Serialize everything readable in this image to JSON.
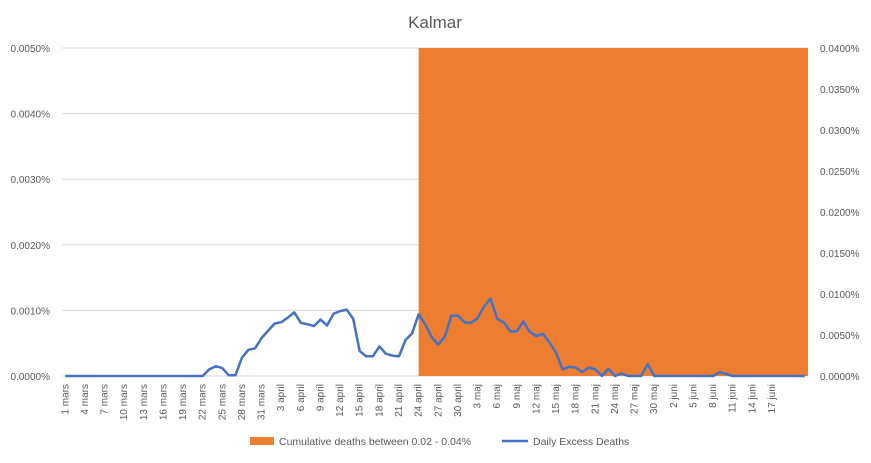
{
  "chart_data": {
    "type": "line",
    "title": "Kalmar",
    "colors": {
      "band": "#ED7D31",
      "line": "#4472C4"
    },
    "grid": true,
    "legend_position": "bottom",
    "y_left": {
      "ticks": [
        "0.0000%",
        "0.0010%",
        "0.0020%",
        "0.0030%",
        "0.0040%",
        "0.0050%"
      ],
      "ylim": [
        0,
        0.005
      ]
    },
    "y_right": {
      "ticks": [
        "0.0000%",
        "0.0050%",
        "0.0100%",
        "0.0150%",
        "0.0200%",
        "0.0250%",
        "0.0300%",
        "0.0350%",
        "0.0400%"
      ],
      "ylim": [
        0,
        0.04
      ]
    },
    "x_tick_labels": [
      "1 mars",
      "4 mars",
      "7 mars",
      "10 mars",
      "13 mars",
      "16 mars",
      "19 mars",
      "22 mars",
      "25 mars",
      "28 mars",
      "31 mars",
      "3 april",
      "6 april",
      "9 april",
      "12 april",
      "15 april",
      "18 april",
      "21 april",
      "24 april",
      "27 april",
      "30 april",
      "3 maj",
      "6 maj",
      "9 maj",
      "12 maj",
      "15 maj",
      "18 maj",
      "21 maj",
      "24 maj",
      "27 maj",
      "30 maj",
      "2 juni",
      "5 juni",
      "8 juni",
      "11 juni",
      "14 juni",
      "17 juni"
    ],
    "series": [
      {
        "name": "Cumulative deaths between 0.02 - 0.04%",
        "type": "area",
        "axis": "right",
        "x_start": "24 april",
        "x_end": "17 juni",
        "y_low": 0.02,
        "y_high": 0.04
      },
      {
        "name": "Daily Excess Deaths",
        "type": "line",
        "axis": "left",
        "values": [
          0,
          0,
          0,
          0,
          0,
          0,
          0,
          0,
          0,
          0,
          0,
          0,
          0,
          0,
          0,
          0,
          0,
          0,
          0,
          0,
          0,
          0,
          0.0001,
          0.00015,
          0.00012,
          1e-05,
          1e-05,
          0.00028,
          0.0004,
          0.00042,
          0.00058,
          0.00069,
          0.0008,
          0.00082,
          0.00089,
          0.00097,
          0.00081,
          0.00079,
          0.00076,
          0.00086,
          0.00077,
          0.00095,
          0.00099,
          0.00101,
          0.00087,
          0.00038,
          0.0003,
          0.0003,
          0.00045,
          0.00034,
          0.00031,
          0.0003,
          0.00055,
          0.00065,
          0.00094,
          0.00079,
          0.00059,
          0.00048,
          0.0006,
          0.00092,
          0.00092,
          0.00082,
          0.00081,
          0.00088,
          0.00106,
          0.00118,
          0.00087,
          0.00082,
          0.00068,
          0.00068,
          0.00083,
          0.00067,
          0.00061,
          0.00064,
          0.00051,
          0.00035,
          0.0001,
          0.00014,
          0.00013,
          6e-05,
          0.00013,
          0.0001,
          0,
          0.00011,
          0,
          4e-05,
          0,
          0,
          0,
          0.00018,
          0,
          0,
          0,
          0,
          0,
          0,
          0,
          0,
          0,
          0,
          6e-05,
          3e-05,
          0,
          0,
          0,
          0,
          0,
          0,
          0,
          0,
          0,
          0,
          0,
          0
        ]
      }
    ]
  }
}
